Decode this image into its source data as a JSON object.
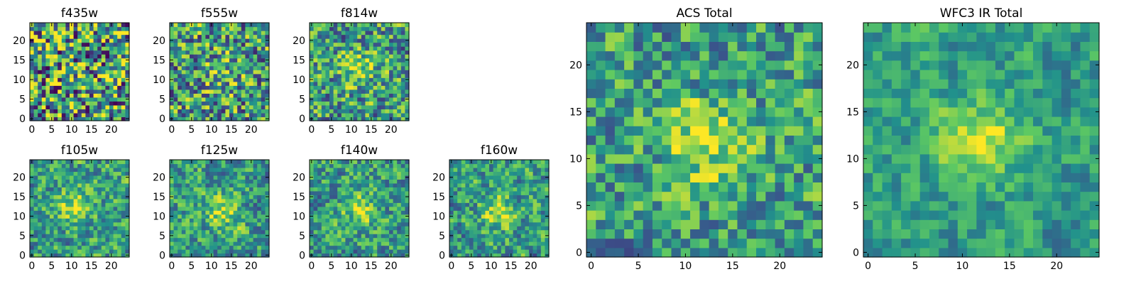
{
  "figure": {
    "description": "Grid of image cutouts per filter plus ACS and WFC3 IR totals"
  },
  "colormap": [
    "#440154",
    "#3b528b",
    "#21918c",
    "#5ec962",
    "#fde725"
  ],
  "chart_data": [
    {
      "type": "heatmap",
      "title": "f435w",
      "grid": 25,
      "xticks": [
        "0",
        "5",
        "10",
        "15",
        "20"
      ],
      "yticks": [
        "0",
        "5",
        "10",
        "15",
        "20"
      ],
      "xlim": [
        0,
        25
      ],
      "ylim": [
        0,
        25
      ],
      "seed": 11,
      "peak": [
        12,
        12
      ],
      "peak_strength": 0.05,
      "blur": 0.0,
      "noise": 0.55
    },
    {
      "type": "heatmap",
      "title": "f555w",
      "grid": 25,
      "xticks": [
        "0",
        "5",
        "10",
        "15",
        "20"
      ],
      "yticks": [
        "0",
        "5",
        "10",
        "15",
        "20"
      ],
      "xlim": [
        0,
        25
      ],
      "ylim": [
        0,
        25
      ],
      "seed": 23,
      "peak": [
        12,
        12
      ],
      "peak_strength": 0.15,
      "blur": 0.15,
      "noise": 0.5
    },
    {
      "type": "heatmap",
      "title": "f814w",
      "grid": 25,
      "xticks": [
        "0",
        "5",
        "10",
        "15",
        "20"
      ],
      "yticks": [
        "0",
        "5",
        "10",
        "15",
        "20"
      ],
      "xlim": [
        0,
        25
      ],
      "ylim": [
        0,
        25
      ],
      "seed": 37,
      "peak": [
        12,
        13
      ],
      "peak_strength": 0.3,
      "blur": 0.2,
      "noise": 0.45
    },
    {
      "type": "heatmap",
      "title": "f105w",
      "grid": 25,
      "xticks": [
        "0",
        "5",
        "10",
        "15",
        "20"
      ],
      "yticks": [
        "0",
        "5",
        "10",
        "15",
        "20"
      ],
      "xlim": [
        0,
        25
      ],
      "ylim": [
        0,
        25
      ],
      "seed": 41,
      "peak": [
        11,
        13
      ],
      "peak_strength": 0.35,
      "blur": 0.35,
      "noise": 0.4
    },
    {
      "type": "heatmap",
      "title": "f125w",
      "grid": 25,
      "xticks": [
        "0",
        "5",
        "10",
        "15",
        "20"
      ],
      "yticks": [
        "0",
        "5",
        "10",
        "15",
        "20"
      ],
      "xlim": [
        0,
        25
      ],
      "ylim": [
        0,
        25
      ],
      "seed": 53,
      "peak": [
        13,
        11
      ],
      "peak_strength": 0.3,
      "blur": 0.35,
      "noise": 0.4
    },
    {
      "type": "heatmap",
      "title": "f140w",
      "grid": 25,
      "xticks": [
        "0",
        "5",
        "10",
        "15",
        "20"
      ],
      "yticks": [
        "0",
        "5",
        "10",
        "15",
        "20"
      ],
      "xlim": [
        0,
        25
      ],
      "ylim": [
        0,
        25
      ],
      "seed": 67,
      "peak": [
        12,
        12
      ],
      "peak_strength": 0.3,
      "blur": 0.35,
      "noise": 0.4
    },
    {
      "type": "heatmap",
      "title": "f160w",
      "grid": 25,
      "xticks": [
        "0",
        "5",
        "10",
        "15",
        "20"
      ],
      "yticks": [
        "0",
        "5",
        "10",
        "15",
        "20"
      ],
      "xlim": [
        0,
        25
      ],
      "ylim": [
        0,
        25
      ],
      "seed": 79,
      "peak": [
        12,
        11
      ],
      "peak_strength": 0.35,
      "blur": 0.35,
      "noise": 0.4
    },
    {
      "type": "heatmap",
      "title": "ACS Total",
      "grid": 25,
      "xticks": [
        "0",
        "5",
        "10",
        "15",
        "20"
      ],
      "yticks": [
        "0",
        "5",
        "10",
        "15",
        "20"
      ],
      "xlim": [
        0,
        25
      ],
      "ylim": [
        0,
        25
      ],
      "seed": 97,
      "peak": [
        12,
        12
      ],
      "peak_strength": 0.35,
      "blur": 0.25,
      "noise": 0.38
    },
    {
      "type": "heatmap",
      "title": "WFC3 IR Total",
      "grid": 25,
      "xticks": [
        "0",
        "5",
        "10",
        "15",
        "20"
      ],
      "yticks": [
        "0",
        "5",
        "10",
        "15",
        "20"
      ],
      "xlim": [
        0,
        25
      ],
      "ylim": [
        0,
        25
      ],
      "seed": 131,
      "peak": [
        12,
        12
      ],
      "peak_strength": 0.4,
      "blur": 0.45,
      "noise": 0.3
    }
  ]
}
